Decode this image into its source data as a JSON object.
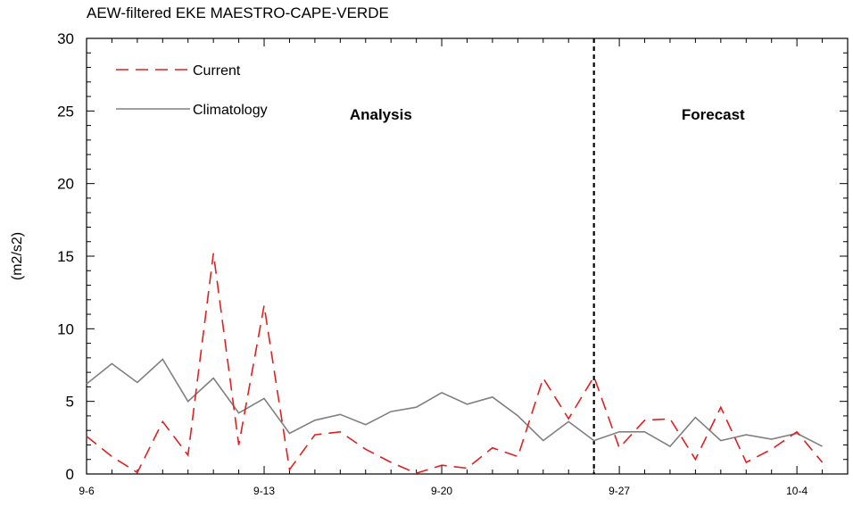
{
  "chart_data": {
    "type": "line",
    "title": "AEW-filtered EKE MAESTRO-CAPE-VERDE",
    "ylabel": "(m2/s2)",
    "xlabel": "",
    "ylim": [
      0,
      30
    ],
    "yticks": [
      0,
      5,
      10,
      15,
      20,
      25,
      30
    ],
    "xlim": [
      0,
      30
    ],
    "xticks": [
      {
        "x": 0,
        "label": "9-6"
      },
      {
        "x": 7,
        "label": "9-13"
      },
      {
        "x": 14,
        "label": "9-20"
      },
      {
        "x": 21,
        "label": "9-27"
      },
      {
        "x": 28,
        "label": "10-4"
      }
    ],
    "x_minor_step": 1,
    "grid": false,
    "legend_position": "top-left",
    "divider_x": 20,
    "regions": [
      {
        "label": "Analysis",
        "x": 11.6
      },
      {
        "label": "Forecast",
        "x": 24.7
      }
    ],
    "series": [
      {
        "name": "Current",
        "color": "#e02020",
        "dash": "dashed",
        "values": [
          [
            0,
            2.6
          ],
          [
            1,
            1.2
          ],
          [
            2,
            0.1
          ],
          [
            3,
            3.6
          ],
          [
            4,
            1.3
          ],
          [
            5,
            15.2
          ],
          [
            6,
            2.0
          ],
          [
            7,
            11.6
          ],
          [
            8,
            0.3
          ],
          [
            9,
            2.7
          ],
          [
            10,
            2.9
          ],
          [
            11,
            1.7
          ],
          [
            12,
            0.8
          ],
          [
            13,
            0.05
          ],
          [
            14,
            0.6
          ],
          [
            15,
            0.4
          ],
          [
            16,
            1.8
          ],
          [
            17,
            1.2
          ],
          [
            18,
            6.6
          ],
          [
            19,
            3.8
          ],
          [
            20,
            6.7
          ],
          [
            21,
            1.8
          ],
          [
            22,
            3.7
          ],
          [
            23,
            3.8
          ],
          [
            24,
            1.0
          ],
          [
            25,
            4.6
          ],
          [
            26,
            0.8
          ],
          [
            27,
            1.7
          ],
          [
            28,
            2.9
          ],
          [
            29,
            0.8
          ]
        ]
      },
      {
        "name": "Climatology",
        "color": "#808080",
        "dash": "solid",
        "values": [
          [
            0,
            6.2
          ],
          [
            1,
            7.6
          ],
          [
            2,
            6.3
          ],
          [
            3,
            7.9
          ],
          [
            4,
            5.0
          ],
          [
            5,
            6.6
          ],
          [
            6,
            4.2
          ],
          [
            7,
            5.2
          ],
          [
            8,
            2.8
          ],
          [
            9,
            3.7
          ],
          [
            10,
            4.1
          ],
          [
            11,
            3.4
          ],
          [
            12,
            4.3
          ],
          [
            13,
            4.6
          ],
          [
            14,
            5.6
          ],
          [
            15,
            4.8
          ],
          [
            16,
            5.3
          ],
          [
            17,
            4.0
          ],
          [
            18,
            2.3
          ],
          [
            19,
            3.6
          ],
          [
            20,
            2.3
          ],
          [
            21,
            2.9
          ],
          [
            22,
            2.9
          ],
          [
            23,
            1.9
          ],
          [
            24,
            3.9
          ],
          [
            25,
            2.3
          ],
          [
            26,
            2.7
          ],
          [
            27,
            2.4
          ],
          [
            28,
            2.8
          ],
          [
            29,
            1.9
          ]
        ]
      }
    ]
  }
}
